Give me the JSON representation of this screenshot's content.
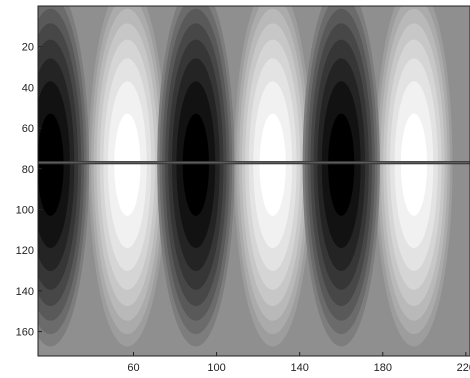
{
  "chart_data": {
    "type": "heatmap",
    "title": "",
    "xlabel": "",
    "ylabel": "",
    "xlim": [
      14,
      222
    ],
    "ylim": [
      172,
      0
    ],
    "x_ticks": [
      {
        "value": 60,
        "label": "60"
      },
      {
        "value": 100,
        "label": "100"
      },
      {
        "value": 140,
        "label": "140"
      },
      {
        "value": 180,
        "label": "180"
      },
      {
        "value": 220,
        "label": "220"
      }
    ],
    "y_ticks": [
      {
        "value": 20,
        "label": "20"
      },
      {
        "value": 40,
        "label": "40"
      },
      {
        "value": 60,
        "label": "60"
      },
      {
        "value": 80,
        "label": "80"
      },
      {
        "value": 100,
        "label": "100"
      },
      {
        "value": 120,
        "label": "120"
      },
      {
        "value": 140,
        "label": "140"
      },
      {
        "value": 160,
        "label": "160"
      }
    ],
    "colormap": "gray",
    "contour_levels": 8,
    "background_value": 0.56,
    "field": {
      "description_type": "standing-wave",
      "x_period": 70,
      "x_peak_white": [
        57,
        127,
        195
      ],
      "x_peak_black": [
        20,
        90,
        160
      ],
      "y_center": 78,
      "y_half_height": 95
    },
    "horizontal_line": {
      "y": 77,
      "color": "#3a3a3a"
    },
    "grid": false,
    "legend": "none"
  }
}
